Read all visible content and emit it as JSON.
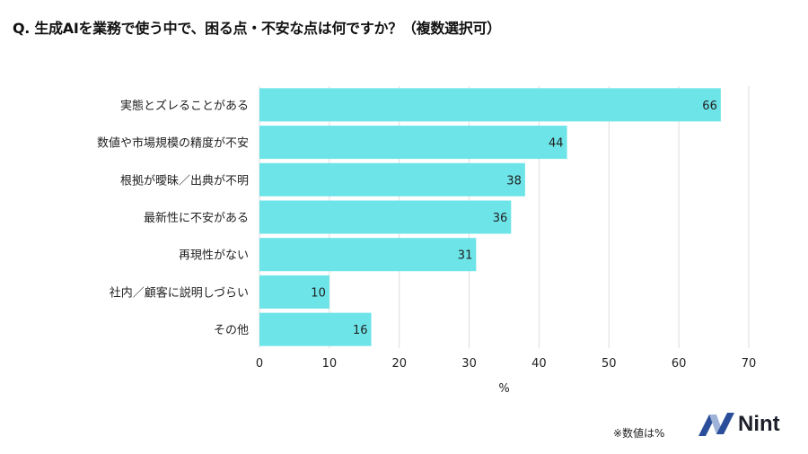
{
  "chart_data": {
    "type": "bar",
    "orientation": "horizontal",
    "title": "Q. 生成AIを業務で使う中で、困る点・不安な点は何ですか？（複数選択可）",
    "categories": [
      "実態とズレることがある",
      "数値や市場規模の精度が不安",
      "根拠が曖昧／出典が不明",
      "最新性に不安がある",
      "再現性がない",
      "社内／顧客に説明しづらい",
      "その他"
    ],
    "values": [
      66,
      44,
      38,
      36,
      31,
      10,
      16
    ],
    "xlabel": "%",
    "ylabel": "",
    "xlim": [
      0,
      70
    ],
    "xticks": [
      0,
      10,
      20,
      30,
      40,
      50,
      60,
      70
    ],
    "grid": true,
    "bar_color": "#6ce4e8",
    "data_labels": true
  },
  "footer": {
    "note": "※数値は%",
    "logo": "Nint"
  }
}
